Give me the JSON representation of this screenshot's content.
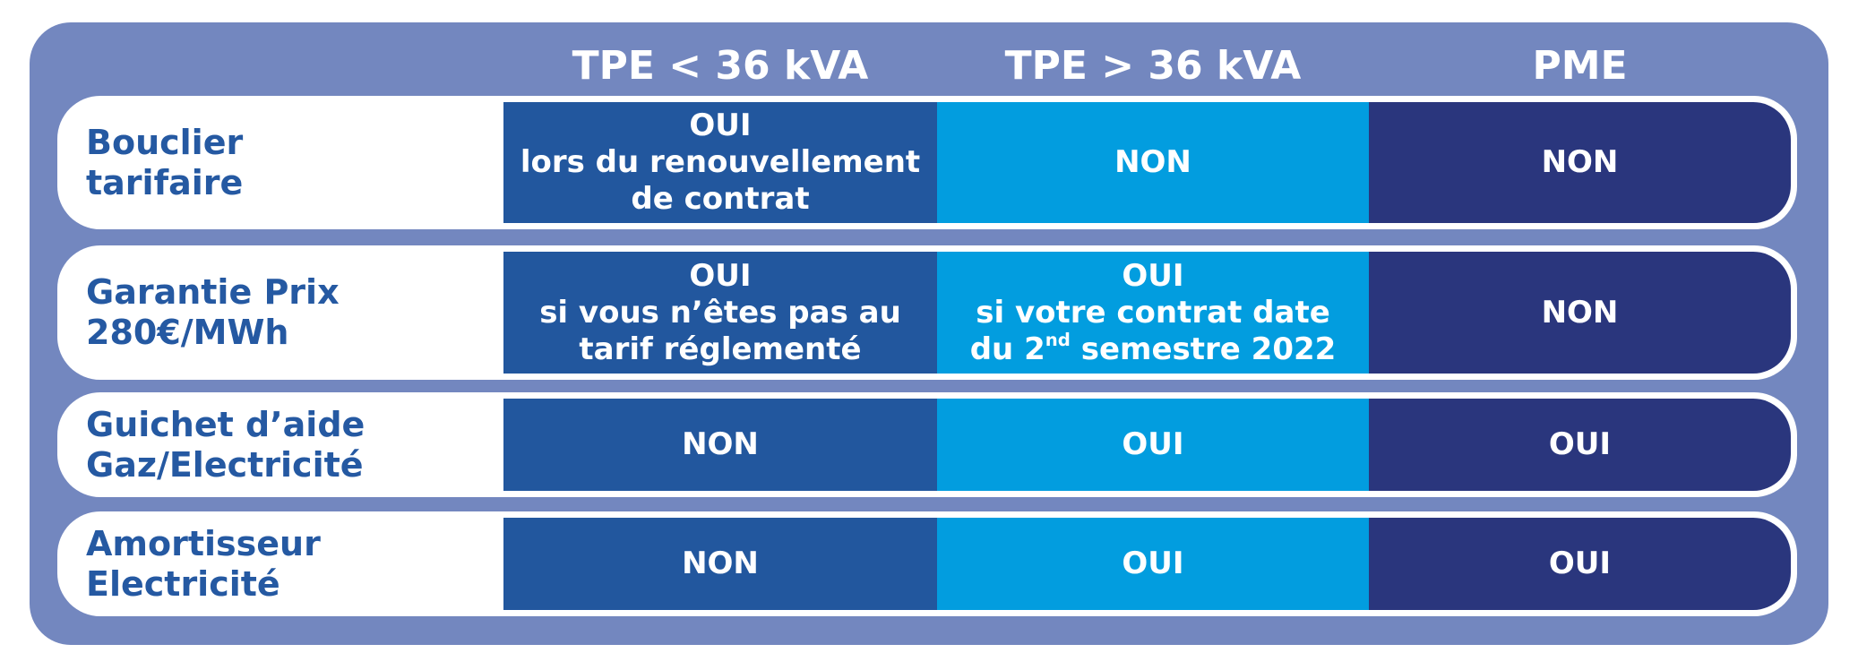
{
  "headers": [
    "TPE < 36 kVA",
    "TPE > 36 kVA",
    "PME"
  ],
  "rows": [
    {
      "label": [
        "Bouclier",
        "tarifaire"
      ],
      "c1": [
        "OUI",
        "lors du renouvellement",
        "de contrat"
      ],
      "c2": [
        "NON"
      ],
      "c3": [
        "NON"
      ]
    },
    {
      "label": [
        "Garantie Prix",
        "280€/MWh"
      ],
      "c1": [
        "OUI",
        "si vous n’êtes pas au",
        "tarif réglementé"
      ],
      "c2": [
        "OUI",
        "si votre contrat date",
        "du 2",
        "nd",
        " semestre 2022"
      ],
      "c3": [
        "NON"
      ]
    },
    {
      "label": [
        "Guichet d’aide",
        "Gaz/Electricité"
      ],
      "c1": [
        "NON"
      ],
      "c2": [
        "OUI"
      ],
      "c3": [
        "OUI"
      ]
    },
    {
      "label": [
        "Amortisseur",
        "Electricité"
      ],
      "c1": [
        "NON"
      ],
      "c2": [
        "OUI"
      ],
      "c3": [
        "OUI"
      ]
    }
  ],
  "colors": {
    "panel": "#7387bf",
    "row_label_text": "#2559a2",
    "col1": "#22579e",
    "col2": "#029ddf",
    "col3": "#2a367d"
  }
}
